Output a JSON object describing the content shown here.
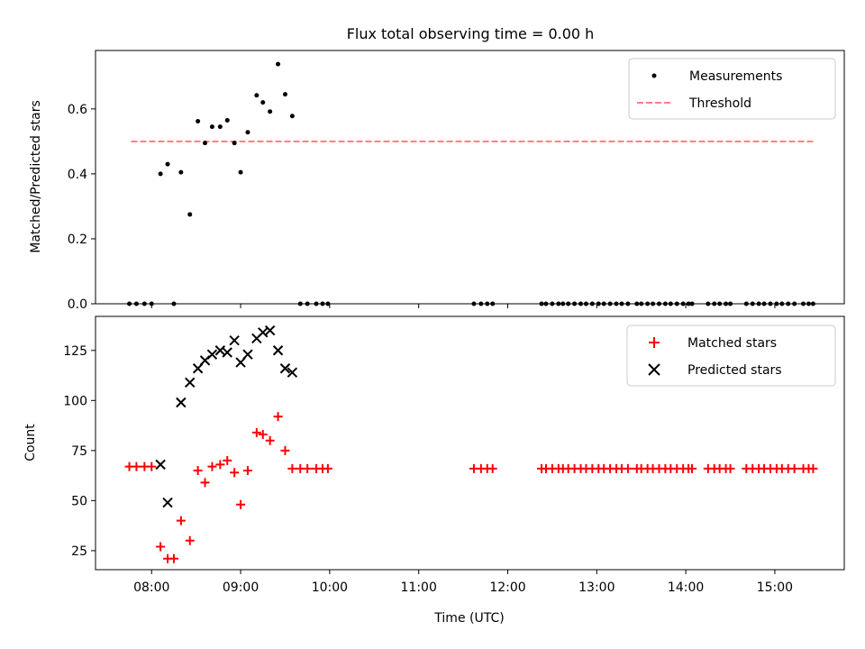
{
  "title": "Flux total observing time = 0.00 h",
  "chart_data": [
    {
      "type": "scatter",
      "ylabel": "Matched/Predicted stars",
      "xlim": [
        7.37,
        15.78
      ],
      "ylim": [
        0,
        0.78
      ],
      "yticks": [
        0.0,
        0.2,
        0.4,
        0.6
      ],
      "ytick_labels": [
        "0.0",
        "0.2",
        "0.4",
        "0.6"
      ],
      "legend_position": "top-right",
      "legend": [
        {
          "label": "Measurements",
          "marker": "dot",
          "color": "#000000"
        },
        {
          "label": "Threshold",
          "marker": "dashed-line",
          "color": "#ff7f7f"
        }
      ],
      "threshold": {
        "value": 0.5,
        "x_start": 7.77,
        "x_end": 15.43,
        "color": "#ff7f7f"
      },
      "measurements": {
        "x": [
          7.75,
          7.83,
          7.92,
          8.0,
          8.1,
          8.18,
          8.25,
          8.33,
          8.43,
          8.52,
          8.6,
          8.68,
          8.77,
          8.85,
          8.93,
          9.0,
          9.08,
          9.18,
          9.25,
          9.33,
          9.42,
          9.5,
          9.58,
          9.67,
          9.75,
          9.85,
          9.92,
          9.98,
          11.62,
          11.7,
          11.77,
          11.83,
          12.38,
          12.43,
          12.5,
          12.57,
          12.62,
          12.68,
          12.75,
          12.82,
          12.88,
          12.95,
          13.02,
          13.08,
          13.15,
          13.22,
          13.28,
          13.35,
          13.45,
          13.5,
          13.57,
          13.63,
          13.7,
          13.77,
          13.83,
          13.9,
          13.97,
          14.03,
          14.07,
          14.25,
          14.32,
          14.38,
          14.45,
          14.5,
          14.68,
          14.75,
          14.82,
          14.88,
          14.95,
          15.02,
          15.08,
          15.15,
          15.22,
          15.32,
          15.38,
          15.43
        ],
        "y": [
          0,
          0,
          0,
          0,
          0.4,
          0.43,
          0,
          0.405,
          0.275,
          0.562,
          0.495,
          0.545,
          0.545,
          0.565,
          0.495,
          0.405,
          0.528,
          0.642,
          0.62,
          0.592,
          0.738,
          0.645,
          0.578,
          0,
          0,
          0,
          0,
          0,
          0,
          0,
          0,
          0,
          0,
          0,
          0,
          0,
          0,
          0,
          0,
          0,
          0,
          0,
          0,
          0,
          0,
          0,
          0,
          0,
          0,
          0,
          0,
          0,
          0,
          0,
          0,
          0,
          0,
          0,
          0,
          0,
          0,
          0,
          0,
          0,
          0,
          0,
          0,
          0,
          0,
          0,
          0,
          0,
          0,
          0,
          0,
          0
        ]
      }
    },
    {
      "type": "scatter",
      "ylabel": "Count",
      "xlabel": "Time (UTC)",
      "xlim": [
        7.37,
        15.78
      ],
      "ylim": [
        15.5,
        142
      ],
      "yticks": [
        25,
        50,
        75,
        100,
        125
      ],
      "ytick_labels": [
        "25",
        "50",
        "75",
        "100",
        "125"
      ],
      "xticks": [
        8,
        9,
        10,
        11,
        12,
        13,
        14,
        15
      ],
      "xtick_labels": [
        "08:00",
        "09:00",
        "10:00",
        "11:00",
        "12:00",
        "13:00",
        "14:00",
        "15:00"
      ],
      "legend_position": "top-right",
      "series": [
        {
          "name": "Matched stars",
          "marker": "plus",
          "color": "#ff0000",
          "x": [
            7.75,
            7.83,
            7.92,
            8.0,
            8.1,
            8.18,
            8.25,
            8.33,
            8.43,
            8.52,
            8.6,
            8.68,
            8.77,
            8.85,
            8.93,
            9.0,
            9.08,
            9.18,
            9.25,
            9.33,
            9.42,
            9.5,
            9.58,
            9.67,
            9.75,
            9.85,
            9.92,
            9.98,
            11.62,
            11.7,
            11.77,
            11.83,
            12.38,
            12.43,
            12.5,
            12.57,
            12.62,
            12.68,
            12.75,
            12.82,
            12.88,
            12.95,
            13.02,
            13.08,
            13.15,
            13.22,
            13.28,
            13.35,
            13.45,
            13.5,
            13.57,
            13.63,
            13.7,
            13.77,
            13.83,
            13.9,
            13.97,
            14.03,
            14.07,
            14.25,
            14.32,
            14.38,
            14.45,
            14.5,
            14.68,
            14.75,
            14.82,
            14.88,
            14.95,
            15.02,
            15.08,
            15.15,
            15.22,
            15.32,
            15.38,
            15.43
          ],
          "y": [
            67,
            67,
            67,
            67,
            27,
            21,
            21,
            40,
            30,
            65,
            59,
            67,
            68,
            70,
            64,
            48,
            65,
            84,
            83,
            80,
            92,
            75,
            66,
            66,
            66,
            66,
            66,
            66,
            66,
            66,
            66,
            66,
            66,
            66,
            66,
            66,
            66,
            66,
            66,
            66,
            66,
            66,
            66,
            66,
            66,
            66,
            66,
            66,
            66,
            66,
            66,
            66,
            66,
            66,
            66,
            66,
            66,
            66,
            66,
            66,
            66,
            66,
            66,
            66,
            66,
            66,
            66,
            66,
            66,
            66,
            66,
            66,
            66,
            66,
            66,
            66
          ]
        },
        {
          "name": "Predicted stars",
          "marker": "x",
          "color": "#000000",
          "x": [
            8.1,
            8.18,
            8.33,
            8.43,
            8.52,
            8.6,
            8.68,
            8.77,
            8.85,
            8.93,
            9.0,
            9.08,
            9.18,
            9.25,
            9.33,
            9.42,
            9.5,
            9.58
          ],
          "y": [
            68,
            49,
            99,
            109,
            116,
            120,
            123,
            125,
            124,
            130,
            119,
            123,
            131,
            134,
            135,
            125,
            116,
            114
          ]
        }
      ]
    }
  ]
}
